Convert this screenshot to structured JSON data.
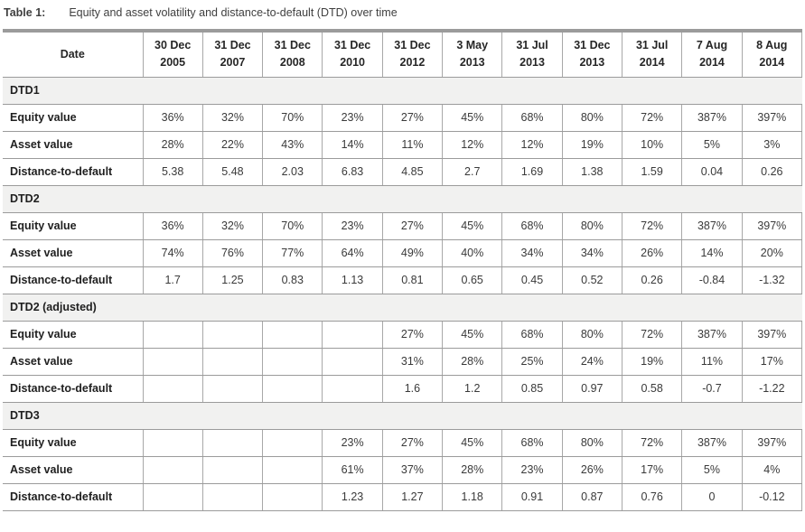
{
  "caption": {
    "label": "Table 1:",
    "text": "Equity and asset volatility and distance-to-default (DTD) over time"
  },
  "colors": {
    "rule_color": "#9b9b9b",
    "grid_color": "#a8a8a8",
    "section_bg": "#f1f1f0",
    "label_color": "#1f1f1f",
    "value_color": "#3a3a3a",
    "title_color": "#3f3f3f"
  },
  "table": {
    "date_header": "Date",
    "columns": [
      {
        "l1": "30 Dec",
        "l2": "2005"
      },
      {
        "l1": "31 Dec",
        "l2": "2007"
      },
      {
        "l1": "31 Dec",
        "l2": "2008"
      },
      {
        "l1": "31 Dec",
        "l2": "2010"
      },
      {
        "l1": "31 Dec",
        "l2": "2012"
      },
      {
        "l1": "3 May",
        "l2": "2013"
      },
      {
        "l1": "31 Jul",
        "l2": "2013"
      },
      {
        "l1": "31 Dec",
        "l2": "2013"
      },
      {
        "l1": "31 Jul",
        "l2": "2014"
      },
      {
        "l1": "7 Aug",
        "l2": "2014"
      },
      {
        "l1": "8 Aug",
        "l2": "2014"
      }
    ],
    "sections": [
      {
        "name": "DTD1",
        "rows": [
          {
            "label": "Equity value",
            "values": [
              "36%",
              "32%",
              "70%",
              "23%",
              "27%",
              "45%",
              "68%",
              "80%",
              "72%",
              "387%",
              "397%"
            ]
          },
          {
            "label": "Asset value",
            "values": [
              "28%",
              "22%",
              "43%",
              "14%",
              "11%",
              "12%",
              "12%",
              "19%",
              "10%",
              "5%",
              "3%"
            ]
          },
          {
            "label": "Distance-to-default",
            "values": [
              "5.38",
              "5.48",
              "2.03",
              "6.83",
              "4.85",
              "2.7",
              "1.69",
              "1.38",
              "1.59",
              "0.04",
              "0.26"
            ]
          }
        ]
      },
      {
        "name": "DTD2",
        "rows": [
          {
            "label": "Equity value",
            "values": [
              "36%",
              "32%",
              "70%",
              "23%",
              "27%",
              "45%",
              "68%",
              "80%",
              "72%",
              "387%",
              "397%"
            ]
          },
          {
            "label": "Asset value",
            "values": [
              "74%",
              "76%",
              "77%",
              "64%",
              "49%",
              "40%",
              "34%",
              "34%",
              "26%",
              "14%",
              "20%"
            ]
          },
          {
            "label": "Distance-to-default",
            "values": [
              "1.7",
              "1.25",
              "0.83",
              "1.13",
              "0.81",
              "0.65",
              "0.45",
              "0.52",
              "0.26",
              "-0.84",
              "-1.32"
            ]
          }
        ]
      },
      {
        "name": "DTD2 (adjusted)",
        "rows": [
          {
            "label": "Equity value",
            "values": [
              "",
              "",
              "",
              "",
              "27%",
              "45%",
              "68%",
              "80%",
              "72%",
              "387%",
              "397%"
            ]
          },
          {
            "label": "Asset value",
            "values": [
              "",
              "",
              "",
              "",
              "31%",
              "28%",
              "25%",
              "24%",
              "19%",
              "11%",
              "17%"
            ]
          },
          {
            "label": "Distance-to-default",
            "values": [
              "",
              "",
              "",
              "",
              "1.6",
              "1.2",
              "0.85",
              "0.97",
              "0.58",
              "-0.7",
              "-1.22"
            ]
          }
        ]
      },
      {
        "name": "DTD3",
        "rows": [
          {
            "label": "Equity value",
            "values": [
              "",
              "",
              "",
              "23%",
              "27%",
              "45%",
              "68%",
              "80%",
              "72%",
              "387%",
              "397%"
            ]
          },
          {
            "label": "Asset value",
            "values": [
              "",
              "",
              "",
              "61%",
              "37%",
              "28%",
              "23%",
              "26%",
              "17%",
              "5%",
              "4%"
            ]
          },
          {
            "label": "Distance-to-default",
            "values": [
              "",
              "",
              "",
              "1.23",
              "1.27",
              "1.18",
              "0.91",
              "0.87",
              "0.76",
              "0",
              "-0.12"
            ]
          }
        ]
      }
    ]
  }
}
